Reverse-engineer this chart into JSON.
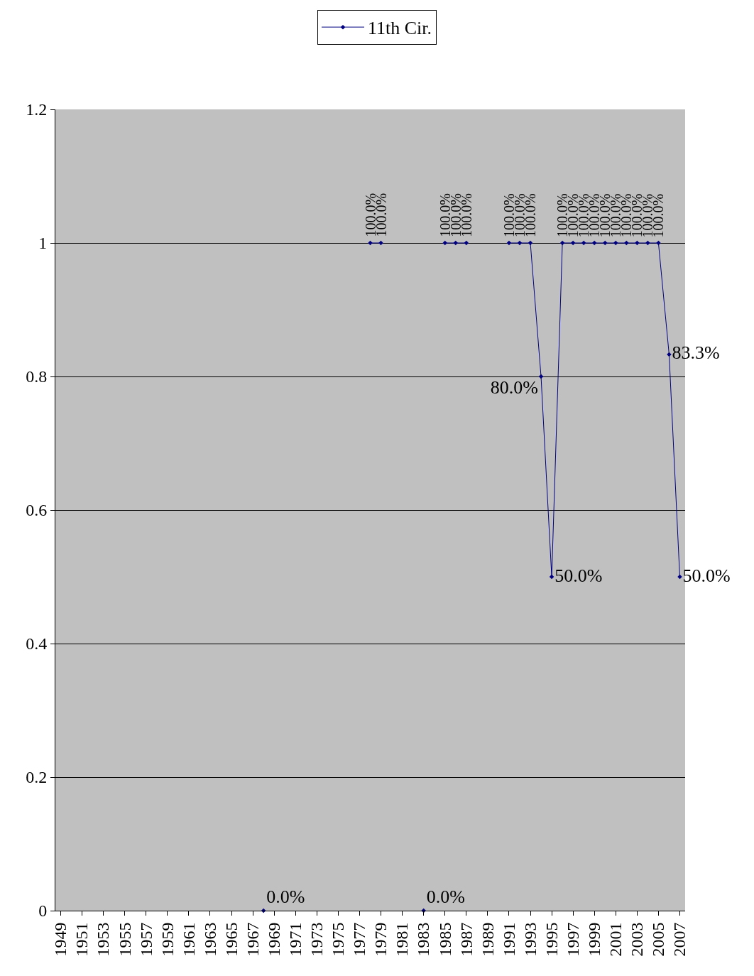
{
  "chart_data": {
    "type": "line",
    "categories": [
      "1949",
      null,
      "1951",
      null,
      "1953",
      null,
      "1955",
      null,
      "1957",
      null,
      "1959",
      null,
      "1961",
      null,
      "1963",
      null,
      "1965",
      null,
      "1967",
      null,
      "1969",
      null,
      "1971",
      null,
      "1973",
      null,
      "1975",
      null,
      "1977",
      null,
      "1979",
      null,
      "1981",
      null,
      "1983",
      null,
      "1985",
      null,
      "1987",
      null,
      "1989",
      null,
      "1991",
      null,
      "1993",
      null,
      "1995",
      null,
      "1997",
      null,
      "1999",
      null,
      "2001",
      null,
      "2003",
      null,
      "2005",
      null,
      "2007"
    ],
    "series": [
      {
        "name": "11th Cir.",
        "color": "#000080",
        "values": [
          null,
          null,
          null,
          null,
          null,
          null,
          null,
          null,
          null,
          null,
          null,
          null,
          null,
          null,
          null,
          null,
          null,
          null,
          null,
          0,
          null,
          null,
          null,
          null,
          null,
          null,
          null,
          null,
          null,
          1,
          1,
          null,
          null,
          null,
          0,
          null,
          1,
          1,
          1,
          null,
          null,
          null,
          1,
          1,
          1,
          0.8,
          0.5,
          1,
          1,
          1,
          1,
          1,
          1,
          1,
          1,
          1,
          1,
          0.833,
          0.5
        ],
        "value_labels": [
          null,
          null,
          null,
          null,
          null,
          null,
          null,
          null,
          null,
          null,
          null,
          null,
          null,
          null,
          null,
          null,
          null,
          null,
          null,
          "0.0%",
          null,
          null,
          null,
          null,
          null,
          null,
          null,
          null,
          null,
          "100.0%",
          "100.0%",
          null,
          null,
          null,
          "0.0%",
          null,
          "100.0%",
          "100.0%",
          "100.0%",
          null,
          null,
          null,
          "100.0%",
          "100.0%",
          "100.0%",
          "80.0%",
          "50.0%",
          "100.0%",
          "100.0%",
          "100.0%",
          "100.0%",
          "100.0%",
          "100.0%",
          "100.0%",
          "100.0%",
          "100.0%",
          "100.0%",
          "83.3%",
          "50.0%"
        ]
      }
    ],
    "ylim": [
      0,
      1.2
    ],
    "yticks": [
      0,
      0.2,
      0.4,
      0.6,
      0.8,
      1,
      1.2
    ],
    "grid": "y",
    "legend": "top",
    "marker": "diamond",
    "line_style": "solid"
  }
}
